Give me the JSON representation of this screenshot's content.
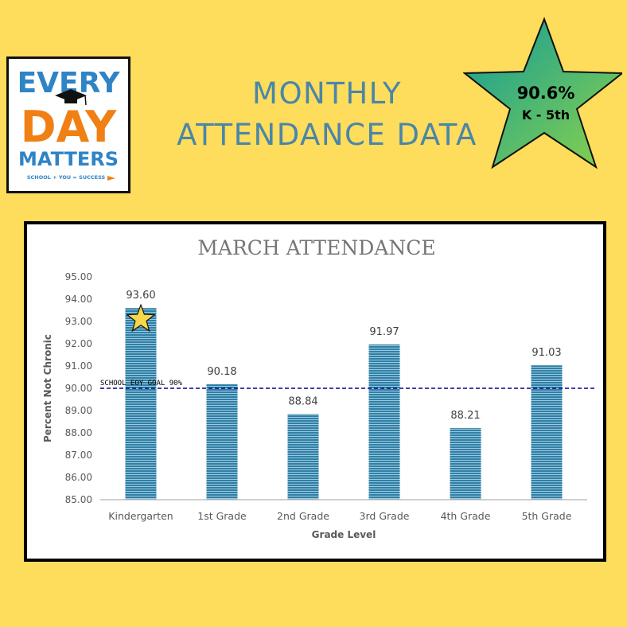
{
  "logo": {
    "line1": "EVERY",
    "line2": "DAY",
    "line3": "MATTERS",
    "tagline": "SCHOOL + YOU = SUCCESS"
  },
  "headline": {
    "line1": "MONTHLY",
    "line2": "ATTENDANCE DATA"
  },
  "badge": {
    "value": "90.6%",
    "label": "K - 5th"
  },
  "colors": {
    "background": "#fedc5c",
    "headline": "#4a86a8",
    "bar": "#3a8aac",
    "goal_line": "#00008b",
    "star_gradient": [
      "#119b9a",
      "#8bd349"
    ]
  },
  "chart_data": {
    "type": "bar",
    "title": "MARCH ATTENDANCE",
    "xlabel": "Grade Level",
    "ylabel": "Percent Not Chronic",
    "categories": [
      "Kindergarten",
      "1st Grade",
      "2nd Grade",
      "3rd Grade",
      "4th Grade",
      "5th Grade"
    ],
    "values": [
      93.6,
      90.18,
      88.84,
      91.97,
      88.21,
      91.03
    ],
    "data_labels": [
      "93.60",
      "90.18",
      "88.84",
      "91.97",
      "88.21",
      "91.03"
    ],
    "ylim": [
      85,
      95
    ],
    "yticks": [
      "85.00",
      "86.00",
      "87.00",
      "88.00",
      "89.00",
      "90.00",
      "91.00",
      "92.00",
      "93.00",
      "94.00",
      "95.00"
    ],
    "goal_line": {
      "value": 90,
      "label": "SCHOOL EOY GOAL 90%"
    },
    "highlight_star_category": "Kindergarten",
    "grid": false,
    "legend": "none"
  }
}
